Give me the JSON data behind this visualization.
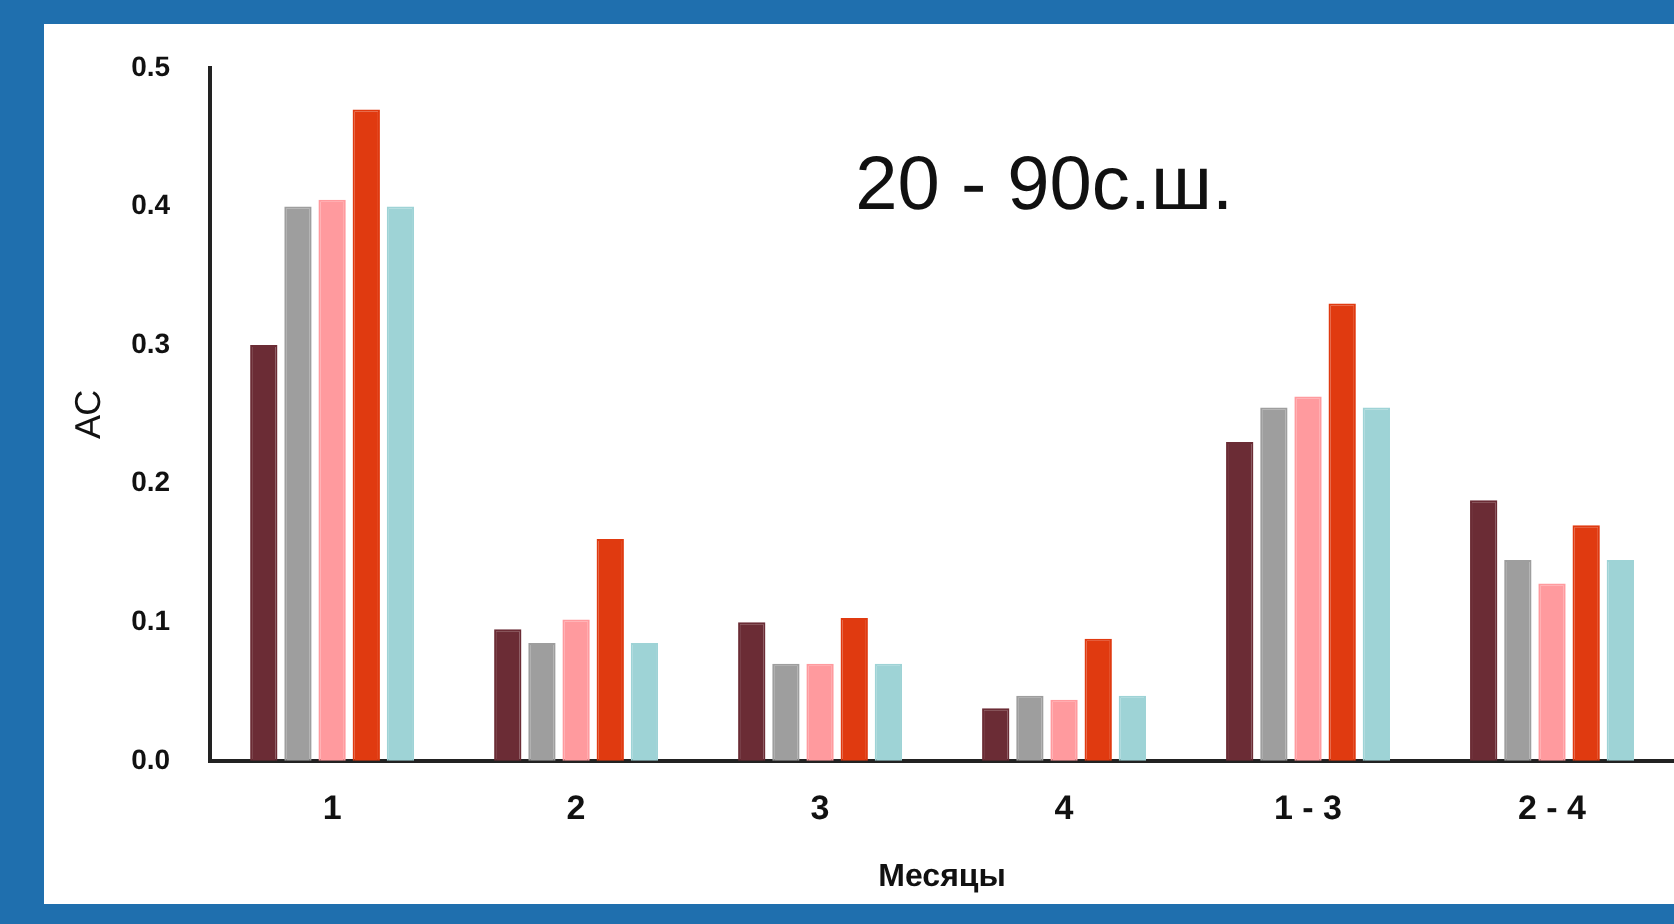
{
  "chart_data": {
    "type": "bar",
    "annotations": [
      "20 - 90с.ш."
    ],
    "xlabel": "Месяцы",
    "ylabel": "АС",
    "categories": [
      "1",
      "2",
      "3",
      "4",
      "1 - 3",
      "2 - 4"
    ],
    "series": [
      {
        "color": "#6b2c35",
        "values": [
          0.3,
          0.095,
          0.1,
          0.038,
          0.23,
          0.188
        ]
      },
      {
        "color": "#9e9e9e",
        "values": [
          0.4,
          0.085,
          0.07,
          0.047,
          0.255,
          0.145
        ]
      },
      {
        "color": "#ff9a9e",
        "values": [
          0.405,
          0.102,
          0.07,
          0.044,
          0.263,
          0.128
        ]
      },
      {
        "color": "#e03a10",
        "values": [
          0.47,
          0.16,
          0.103,
          0.088,
          0.33,
          0.17
        ]
      },
      {
        "color": "#9ed3d6",
        "values": [
          0.4,
          0.085,
          0.07,
          0.047,
          0.255,
          0.145
        ]
      }
    ],
    "ylim": [
      0,
      0.5
    ],
    "yticks": [
      {
        "value": 0,
        "label": "0.0"
      },
      0.1,
      0.2,
      0.3,
      0.4,
      0.5
    ],
    "grid": false,
    "legend": false
  }
}
